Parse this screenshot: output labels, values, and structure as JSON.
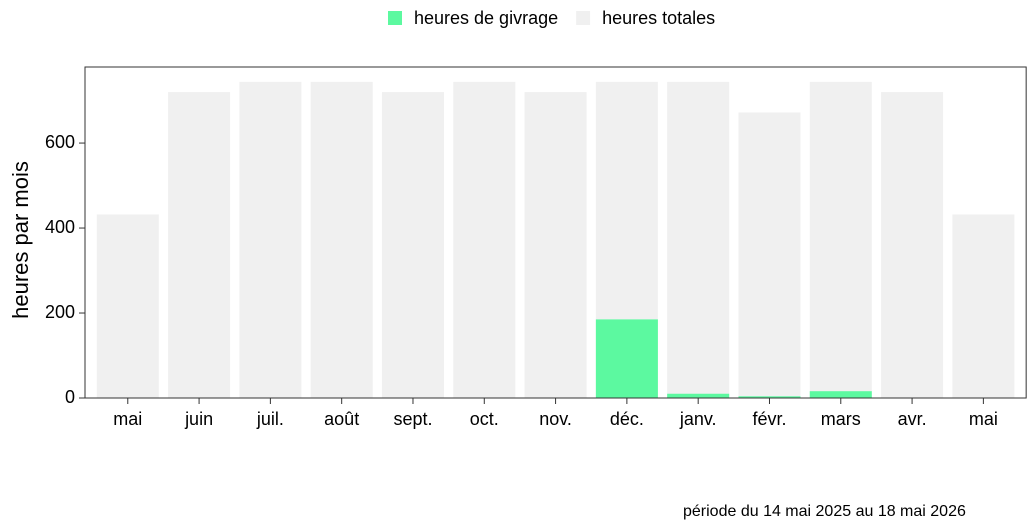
{
  "chart_data": {
    "type": "bar",
    "categories": [
      "mai",
      "juin",
      "juil.",
      "août",
      "sept.",
      "oct.",
      "nov.",
      "déc.",
      "janv.",
      "févr.",
      "mars",
      "avr.",
      "mai"
    ],
    "series": [
      {
        "name": "heures de givrage",
        "color": "#5cf9a0",
        "values": [
          0,
          0,
          0,
          0,
          0,
          0,
          0,
          185,
          10,
          4,
          16,
          0,
          0
        ]
      },
      {
        "name": "heures totales",
        "color": "#f0f0f0",
        "values": [
          432,
          720,
          744,
          744,
          720,
          744,
          720,
          744,
          744,
          672,
          744,
          720,
          432
        ]
      }
    ],
    "ylabel": "heures par mois",
    "ylim": [
      0,
      779
    ],
    "yticks": [
      0,
      200,
      400,
      600
    ],
    "legend": "top",
    "footnote": "période du 14 mai 2025 au 18 mai 2026"
  }
}
